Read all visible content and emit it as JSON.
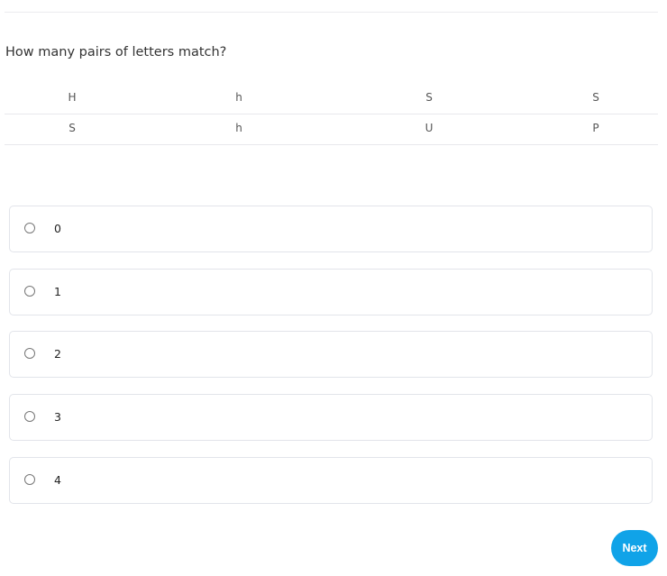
{
  "question": "How many pairs of letters match?",
  "table": {
    "rows": [
      [
        "H",
        "h",
        "S",
        "S"
      ],
      [
        "S",
        "h",
        "U",
        "P"
      ]
    ]
  },
  "options": [
    "0",
    "1",
    "2",
    "3",
    "4"
  ],
  "next_label": "Next",
  "colors": {
    "accent": "#10a3e8"
  }
}
